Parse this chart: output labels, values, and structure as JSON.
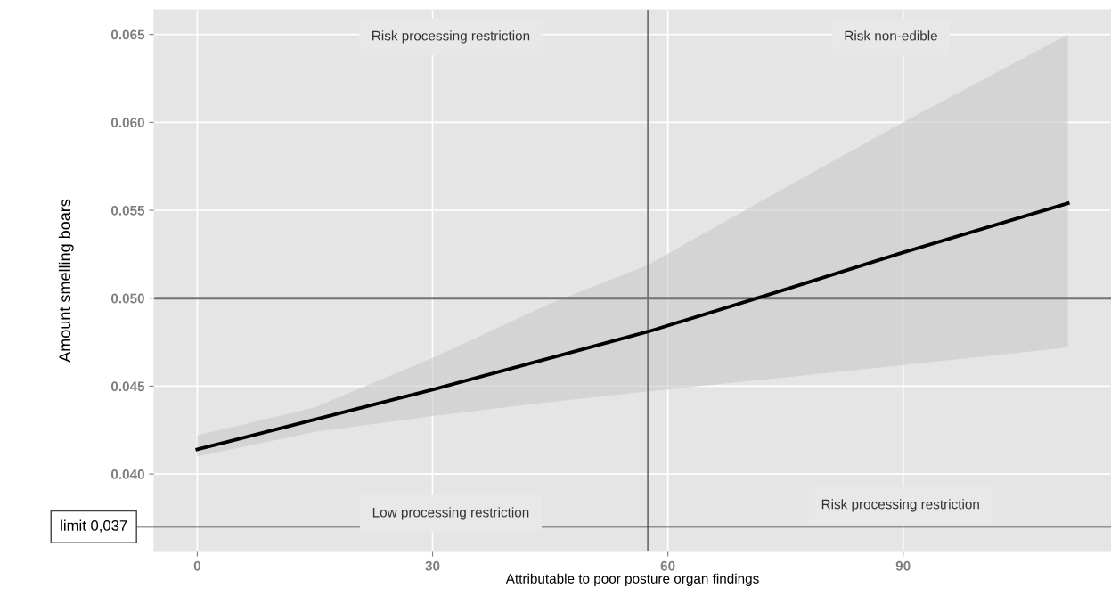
{
  "chart_data": {
    "type": "line",
    "xlabel": "Attributable to poor posture organ findings",
    "ylabel": "Amount smelling boars",
    "x": [
      0,
      15,
      30,
      45,
      57.5,
      75,
      90,
      111
    ],
    "series": [
      {
        "color": "#000000",
        "values": [
          0.0414,
          0.0431,
          0.0448,
          0.0466,
          0.0481,
          0.0505,
          0.0526,
          0.0554
        ],
        "lower": [
          0.041,
          0.0424,
          0.0433,
          0.0441,
          0.0447,
          0.0455,
          0.0462,
          0.0472
        ],
        "upper": [
          0.0422,
          0.0438,
          0.0466,
          0.0497,
          0.0519,
          0.0563,
          0.06,
          0.065
        ]
      }
    ],
    "xlim": [
      -5.5,
      116.5
    ],
    "ylim": [
      0.0356,
      0.0664
    ],
    "xticks": [
      0,
      30,
      60,
      90
    ],
    "yticks": [
      {
        "value": 0.04,
        "label": "0.040"
      },
      {
        "value": 0.045,
        "label": "0.045"
      },
      {
        "value": 0.05,
        "label": "0.050"
      },
      {
        "value": 0.055,
        "label": "0.055"
      },
      {
        "value": 0.06,
        "label": "0.060"
      },
      {
        "value": 0.065,
        "label": "0.065"
      }
    ],
    "grid": true,
    "line_style": "solid",
    "marker": "none",
    "ref_lines": [
      {
        "axis": "x",
        "value": 57.5,
        "color": "#737373"
      },
      {
        "axis": "y",
        "value": 0.05,
        "color": "#737373"
      },
      {
        "axis": "y",
        "value": 0.037,
        "label": "limit 0,037",
        "color": "#404040"
      }
    ],
    "annotations": [
      "Risk processing restriction",
      "Risk non-edible",
      "Low processing restriction",
      "Risk processing restriction"
    ]
  }
}
